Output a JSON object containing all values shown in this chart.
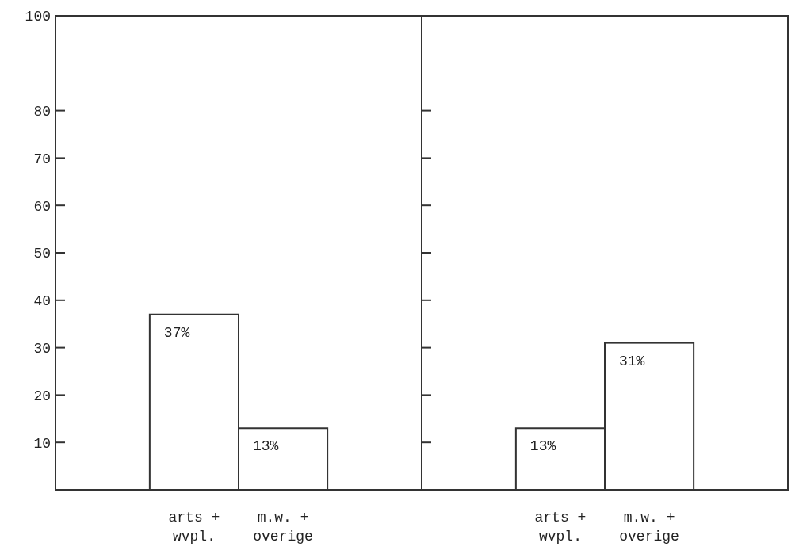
{
  "chart_data": [
    {
      "type": "bar",
      "categories": [
        "arts + wvpl.",
        "m.w. + overige"
      ],
      "values": [
        37,
        13
      ],
      "value_labels": [
        "37%",
        "13%"
      ],
      "color": "#ffffff",
      "ylim": [
        0,
        100
      ],
      "yticks": [
        {
          "value": 0,
          "label": null
        },
        10,
        20,
        30,
        40,
        50,
        60,
        70,
        80,
        100
      ]
    },
    {
      "type": "bar",
      "categories": [
        "arts + wvpl.",
        "m.w. + overige"
      ],
      "values": [
        13,
        31
      ],
      "value_labels": [
        "13%",
        "31%"
      ],
      "color": "#ffffff",
      "ylim": [
        0,
        100
      ],
      "yticks": [
        {
          "value": 0,
          "label": null
        },
        10,
        20,
        30,
        40,
        50,
        60,
        70,
        80,
        100
      ],
      "tick_labels": "x"
    }
  ]
}
